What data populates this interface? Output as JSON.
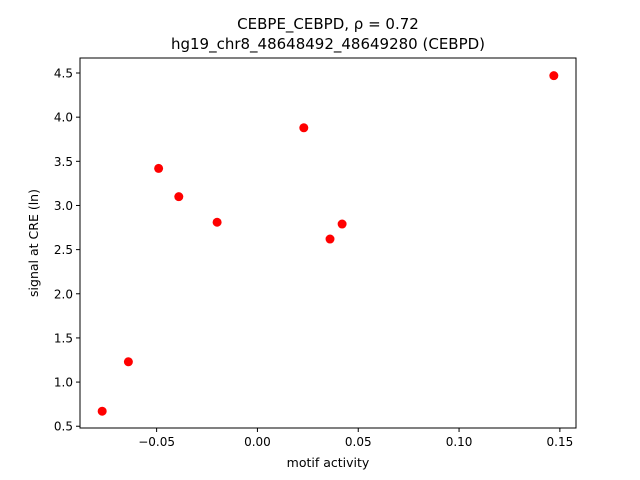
{
  "chart_data": {
    "type": "scatter",
    "title": "CEBPE_CEBPD, ρ = 0.72",
    "subtitle": "hg19_chr8_48648492_48649280 (CEBPD)",
    "xlabel": "motif activity",
    "ylabel": "signal at CRE (ln)",
    "xlim": [
      -0.088,
      0.158
    ],
    "ylim": [
      0.48,
      4.67
    ],
    "xticks": [
      -0.05,
      0.0,
      0.05,
      0.1,
      0.15
    ],
    "xtick_labels": [
      "−0.05",
      "0.00",
      "0.05",
      "0.10",
      "0.15"
    ],
    "yticks": [
      0.5,
      1.0,
      1.5,
      2.0,
      2.5,
      3.0,
      3.5,
      4.0,
      4.5
    ],
    "ytick_labels": [
      "0.5",
      "1.0",
      "1.5",
      "2.0",
      "2.5",
      "3.0",
      "3.5",
      "4.0",
      "4.5"
    ],
    "grid": false,
    "marker_color": "#ff0000",
    "points": [
      {
        "x": -0.077,
        "y": 0.67
      },
      {
        "x": -0.064,
        "y": 1.23
      },
      {
        "x": -0.049,
        "y": 3.42
      },
      {
        "x": -0.039,
        "y": 3.1
      },
      {
        "x": -0.02,
        "y": 2.81
      },
      {
        "x": 0.023,
        "y": 3.88
      },
      {
        "x": 0.036,
        "y": 2.62
      },
      {
        "x": 0.042,
        "y": 2.79
      },
      {
        "x": 0.147,
        "y": 4.47
      }
    ]
  }
}
